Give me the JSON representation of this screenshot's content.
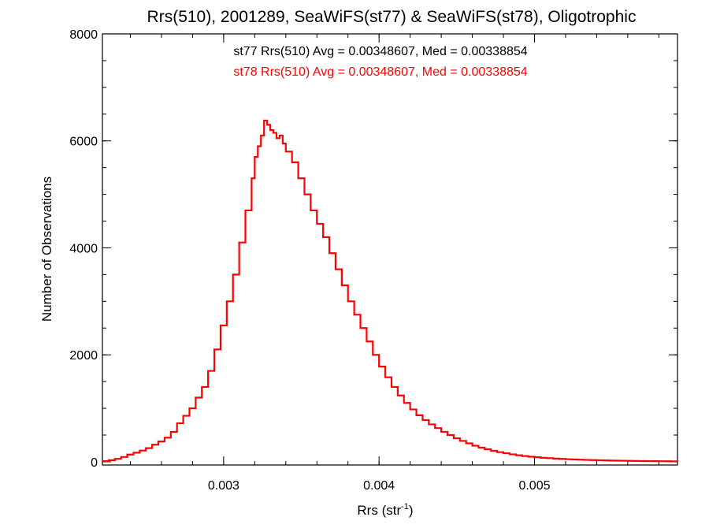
{
  "chart_data": {
    "type": "line",
    "title": "Rrs(510), 2001289, SeaWiFS(st77) & SeaWiFS(st78), Oligotrophic",
    "xlabel": {
      "base": "Rrs (str",
      "sup": "-1",
      "close": ")"
    },
    "ylabel": "Number of Observations",
    "xlim": [
      0.00222,
      0.00592
    ],
    "ylim": [
      -60,
      8000
    ],
    "x_ticks": [
      {
        "value": 0.003,
        "label": "0.003"
      },
      {
        "value": 0.004,
        "label": "0.004"
      },
      {
        "value": 0.005,
        "label": "0.005"
      }
    ],
    "y_ticks": [
      {
        "value": 0,
        "label": "0"
      },
      {
        "value": 2000,
        "label": "2000"
      },
      {
        "value": 4000,
        "label": "4000"
      },
      {
        "value": 6000,
        "label": "6000"
      },
      {
        "value": 8000,
        "label": "8000"
      }
    ],
    "x_minor_step": 0.0002,
    "y_minor_step": 500,
    "annotations": [
      {
        "text": "st77 Rrs(510) Avg = 0.00348607, Med = 0.00338854",
        "color": "#000000"
      },
      {
        "text": "st78 Rrs(510) Avg = 0.00348607, Med = 0.00338854",
        "color": "#ff0000"
      }
    ],
    "series": [
      {
        "style": "step",
        "color": "#ff0000",
        "points": [
          [
            0.00222,
            12
          ],
          [
            0.00226,
            30
          ],
          [
            0.0023,
            55
          ],
          [
            0.00234,
            90
          ],
          [
            0.00238,
            135
          ],
          [
            0.00242,
            170
          ],
          [
            0.00246,
            210
          ],
          [
            0.0025,
            255
          ],
          [
            0.00254,
            320
          ],
          [
            0.00258,
            380
          ],
          [
            0.00262,
            450
          ],
          [
            0.00266,
            560
          ],
          [
            0.0027,
            720
          ],
          [
            0.00274,
            860
          ],
          [
            0.00278,
            1000
          ],
          [
            0.00282,
            1200
          ],
          [
            0.00286,
            1400
          ],
          [
            0.0029,
            1700
          ],
          [
            0.00294,
            2100
          ],
          [
            0.00298,
            2550
          ],
          [
            0.00302,
            3000
          ],
          [
            0.00306,
            3500
          ],
          [
            0.0031,
            4100
          ],
          [
            0.00314,
            4700
          ],
          [
            0.00318,
            5300
          ],
          [
            0.0032,
            5700
          ],
          [
            0.00322,
            5900
          ],
          [
            0.00324,
            6100
          ],
          [
            0.00326,
            6380
          ],
          [
            0.00328,
            6300
          ],
          [
            0.0033,
            6200
          ],
          [
            0.00332,
            6150
          ],
          [
            0.00334,
            6050
          ],
          [
            0.00336,
            6100
          ],
          [
            0.00338,
            5950
          ],
          [
            0.0034,
            5800
          ],
          [
            0.00344,
            5600
          ],
          [
            0.00348,
            5300
          ],
          [
            0.00352,
            5000
          ],
          [
            0.00356,
            4700
          ],
          [
            0.0036,
            4450
          ],
          [
            0.00364,
            4200
          ],
          [
            0.00368,
            3900
          ],
          [
            0.00372,
            3600
          ],
          [
            0.00376,
            3300
          ],
          [
            0.0038,
            3000
          ],
          [
            0.00384,
            2750
          ],
          [
            0.00388,
            2500
          ],
          [
            0.00392,
            2250
          ],
          [
            0.00396,
            2000
          ],
          [
            0.004,
            1780
          ],
          [
            0.00404,
            1580
          ],
          [
            0.00408,
            1400
          ],
          [
            0.00412,
            1240
          ],
          [
            0.00416,
            1100
          ],
          [
            0.0042,
            980
          ],
          [
            0.00424,
            870
          ],
          [
            0.00428,
            780
          ],
          [
            0.00432,
            700
          ],
          [
            0.00436,
            630
          ],
          [
            0.0044,
            560
          ],
          [
            0.00444,
            500
          ],
          [
            0.00448,
            440
          ],
          [
            0.00452,
            390
          ],
          [
            0.00456,
            345
          ],
          [
            0.0046,
            300
          ],
          [
            0.00464,
            265
          ],
          [
            0.00468,
            235
          ],
          [
            0.00472,
            205
          ],
          [
            0.00476,
            180
          ],
          [
            0.0048,
            160
          ],
          [
            0.00484,
            140
          ],
          [
            0.00488,
            122
          ],
          [
            0.00492,
            108
          ],
          [
            0.00496,
            95
          ],
          [
            0.005,
            85
          ],
          [
            0.00504,
            75
          ],
          [
            0.00508,
            68
          ],
          [
            0.00512,
            60
          ],
          [
            0.00516,
            54
          ],
          [
            0.0052,
            48
          ],
          [
            0.00524,
            43
          ],
          [
            0.00528,
            39
          ],
          [
            0.00532,
            35
          ],
          [
            0.00536,
            32
          ],
          [
            0.0054,
            29
          ],
          [
            0.00544,
            26
          ],
          [
            0.00548,
            23
          ],
          [
            0.00552,
            21
          ],
          [
            0.00556,
            19
          ],
          [
            0.0056,
            17
          ],
          [
            0.00564,
            15
          ],
          [
            0.00568,
            14
          ],
          [
            0.00572,
            13
          ],
          [
            0.00576,
            12
          ],
          [
            0.0058,
            11
          ],
          [
            0.00584,
            10
          ],
          [
            0.00588,
            9
          ],
          [
            0.00592,
            8
          ]
        ]
      }
    ]
  }
}
